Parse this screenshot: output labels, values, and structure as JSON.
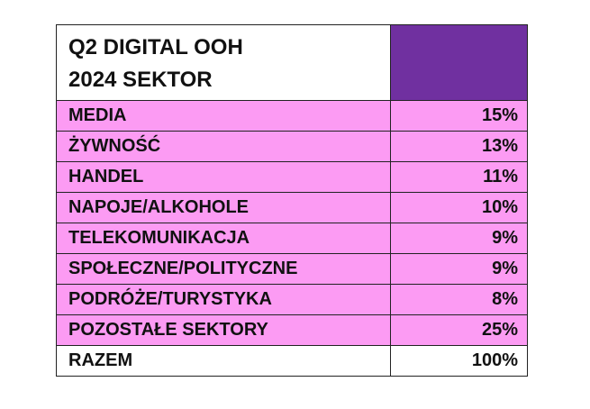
{
  "table": {
    "title_lines": [
      "Q2 DIGITAL OOH",
      "2024 SEKTOR"
    ],
    "rows": [
      [
        "MEDIA",
        "15%"
      ],
      [
        "ŻYWNOŚĆ",
        "13%"
      ],
      [
        "HANDEL",
        "11%"
      ],
      [
        "NAPOJE/ALKOHOLE",
        "10%"
      ],
      [
        "TELEKOMUNIKACJA",
        "9%"
      ],
      [
        "SPOŁECZNE/POLITYCZNE",
        "9%"
      ],
      [
        "PODRÓŻE/TURYSTYKA",
        "8%"
      ],
      [
        "POZOSTAŁE SEKTORY",
        "25%"
      ],
      [
        "RAZEM",
        "100%"
      ]
    ]
  }
}
